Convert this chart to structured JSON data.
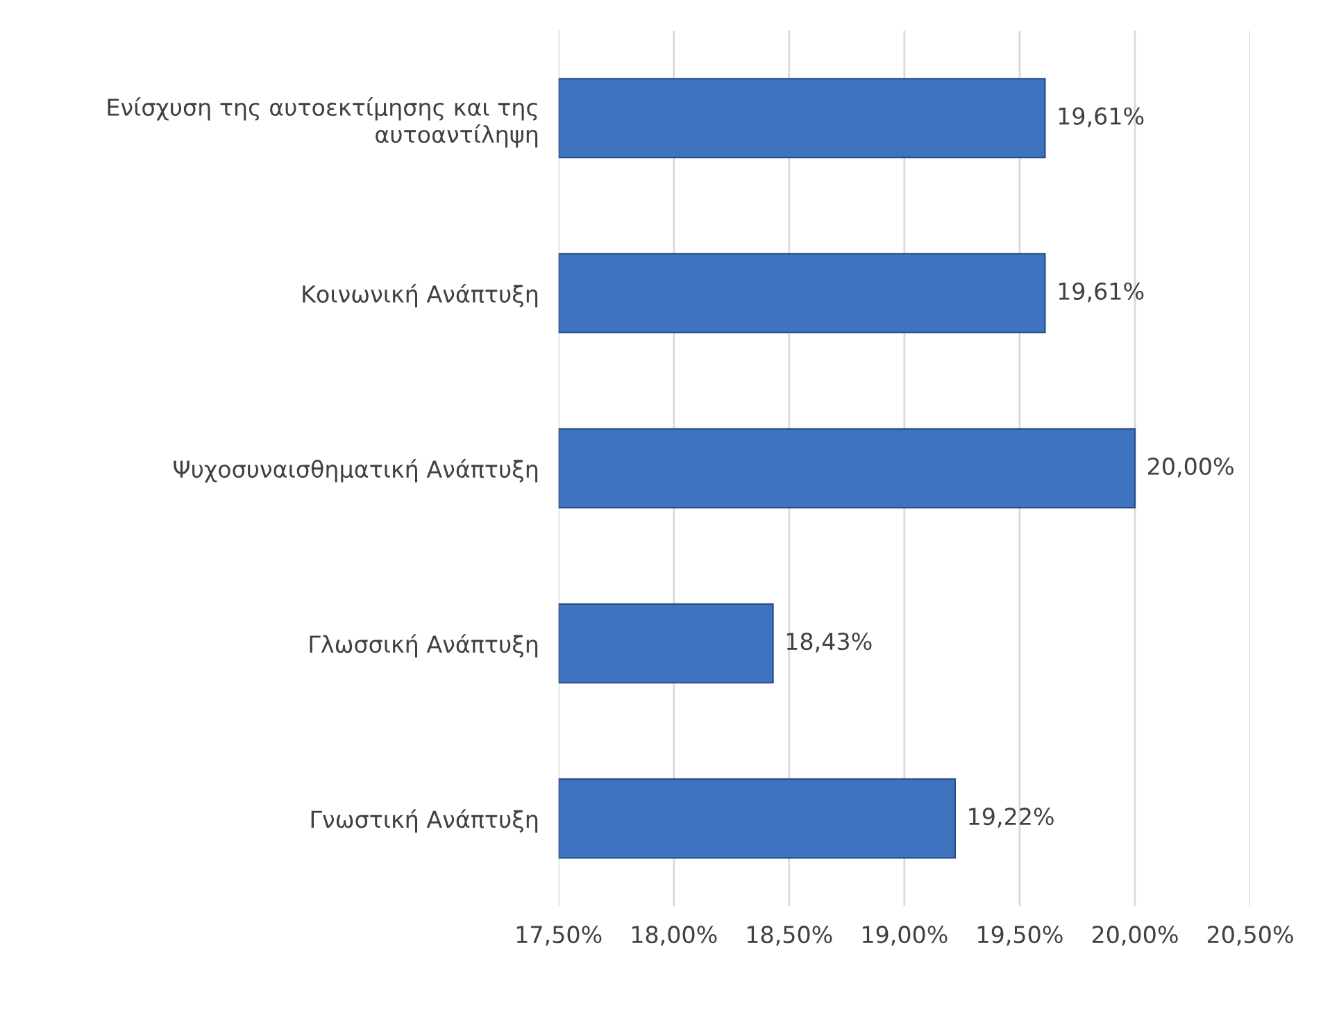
{
  "chart_data": {
    "type": "bar",
    "orientation": "horizontal",
    "categories": [
      "Ενίσχυση της αυτοεκτίμησης και της αυτοαντίληψη",
      "Κοινωνική Ανάπτυξη",
      "Ψυχοσυναισθηματική Ανάπτυξη",
      "Γλωσσική Ανάπτυξη",
      "Γνωστική Ανάπτυξη"
    ],
    "values": [
      19.61,
      19.61,
      20.0,
      18.43,
      19.22
    ],
    "value_labels": [
      "19,61%",
      "19,61%",
      "20,00%",
      "18,43%",
      "19,22%"
    ],
    "color": "#3f72bf",
    "xlim": [
      17.5,
      20.5
    ],
    "xticks": [
      {
        "value": 17.5,
        "label": "17,50%"
      },
      {
        "value": 18.0,
        "label": "18,00%"
      },
      {
        "value": 18.5,
        "label": "18,50%"
      },
      {
        "value": 19.0,
        "label": "19,00%"
      },
      {
        "value": 19.5,
        "label": "19,50%"
      },
      {
        "value": 20.0,
        "label": "20,00%"
      },
      {
        "value": 20.5,
        "label": "20,50%"
      }
    ],
    "grid": "x",
    "legend": false
  }
}
